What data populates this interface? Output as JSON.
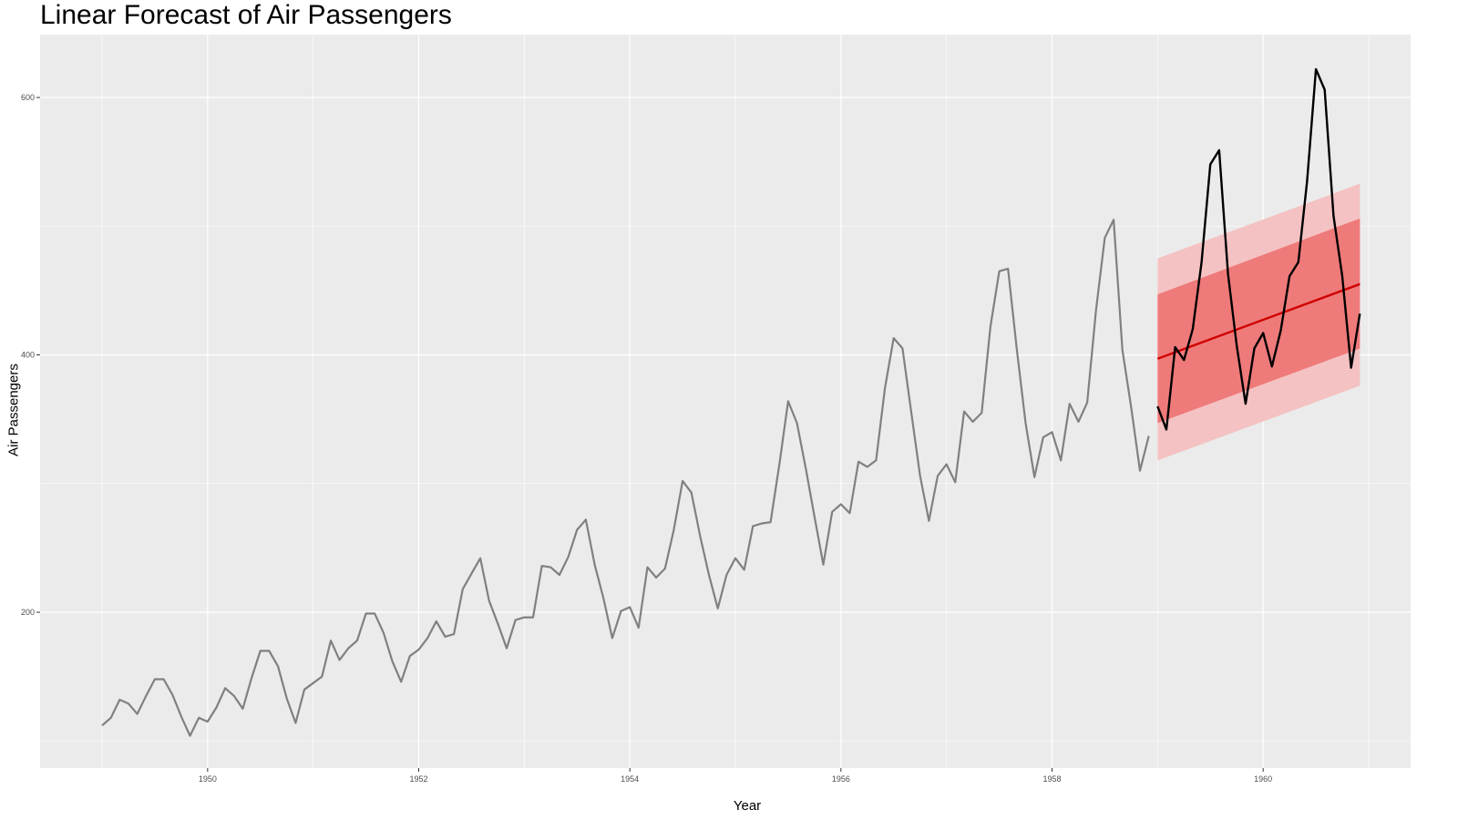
{
  "chart_data": {
    "type": "line",
    "title": "Linear Forecast of Air Passengers",
    "xlabel": "Year",
    "ylabel": "Air Passengers",
    "xlim": [
      1948.75,
      1961.1
    ],
    "ylim": [
      88,
      640
    ],
    "x_ticks": [
      1950,
      1952,
      1954,
      1956,
      1958,
      1960
    ],
    "y_ticks": [
      200,
      400,
      600
    ],
    "grid": true,
    "legend": "none",
    "colors": {
      "panel_background": "#EBEBEB",
      "grid": "#FFFFFF",
      "history_line": "#808080",
      "actual_line": "#000000",
      "forecast_line": "#D00000",
      "interval_80": "#EF7A7A",
      "interval_95": "#F4C2C2"
    },
    "series": [
      {
        "role": "history",
        "start": 1949.0,
        "step": 0.0833333,
        "values": [
          112,
          118,
          132,
          129,
          121,
          135,
          148,
          148,
          136,
          119,
          104,
          118,
          115,
          126,
          141,
          135,
          125,
          149,
          170,
          170,
          158,
          133,
          114,
          140,
          145,
          150,
          178,
          163,
          172,
          178,
          199,
          199,
          184,
          162,
          146,
          166,
          171,
          180,
          193,
          181,
          183,
          218,
          230,
          242,
          209,
          191,
          172,
          194,
          196,
          196,
          236,
          235,
          229,
          243,
          264,
          272,
          237,
          211,
          180,
          201,
          204,
          188,
          235,
          227,
          234,
          264,
          302,
          293,
          259,
          229,
          203,
          229,
          242,
          233,
          267,
          269,
          270,
          315,
          364,
          347,
          312,
          274,
          237,
          278,
          284,
          277,
          317,
          313,
          318,
          374,
          413,
          405,
          355,
          306,
          271,
          306,
          315,
          301,
          356,
          348,
          355,
          422,
          465,
          467,
          404,
          347,
          305,
          336,
          340,
          318,
          362,
          348,
          363,
          435,
          491,
          505,
          404,
          359,
          310,
          337
        ]
      },
      {
        "role": "actual",
        "start": 1959.0,
        "step": 0.0833333,
        "values": [
          360,
          342,
          406,
          396,
          420,
          472,
          548,
          559,
          463,
          407,
          362,
          405,
          417,
          391,
          419,
          461,
          472,
          535,
          622,
          606,
          508,
          461,
          390,
          432
        ]
      },
      {
        "role": "forecast",
        "x": [
          1959.0,
          1960.9167
        ],
        "mean": [
          397,
          455
        ],
        "lo80": [
          347,
          405
        ],
        "hi80": [
          447,
          506
        ],
        "lo95": [
          318,
          376
        ],
        "hi95": [
          475,
          533
        ]
      }
    ]
  }
}
